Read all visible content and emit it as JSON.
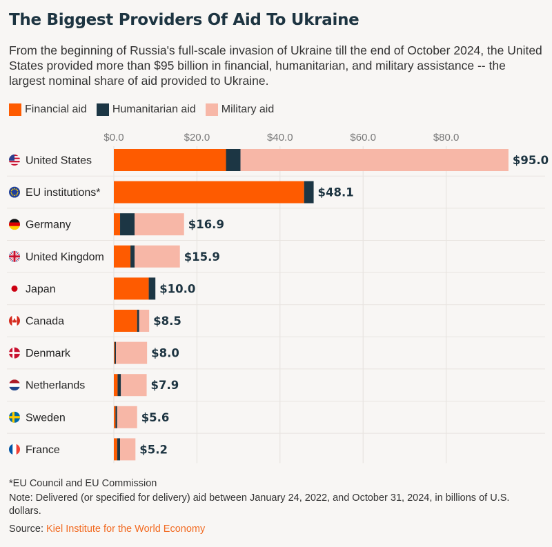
{
  "header": {
    "title": "The Biggest Providers Of Aid To Ukraine",
    "subtitle": "From the beginning of Russia's full-scale invasion of Ukraine till the end of October 2024, the United States provided more than $95 billion in financial, humanitarian, and military assistance -- the largest nominal share of aid provided to Ukraine."
  },
  "legend": [
    {
      "label": "Financial aid",
      "color": "#fe5b00"
    },
    {
      "label": "Humanitarian aid",
      "color": "#1c3644"
    },
    {
      "label": "Military aid",
      "color": "#f7b7a7"
    }
  ],
  "chart_data": {
    "type": "bar",
    "orientation": "horizontal",
    "stacked": true,
    "categories": [
      "United States",
      "EU institutions*",
      "Germany",
      "United Kingdom",
      "Japan",
      "Canada",
      "Denmark",
      "Netherlands",
      "Sweden",
      "France"
    ],
    "flags": [
      "us-flag-icon",
      "eu-flag-icon",
      "germany-flag-icon",
      "uk-flag-icon",
      "japan-flag-icon",
      "canada-flag-icon",
      "denmark-flag-icon",
      "netherlands-flag-icon",
      "sweden-flag-icon",
      "france-flag-icon"
    ],
    "series": [
      {
        "name": "Financial aid",
        "color": "#fe5b00",
        "values": [
          27.0,
          45.8,
          1.5,
          4.0,
          8.4,
          5.6,
          0.2,
          0.9,
          0.4,
          0.8
        ]
      },
      {
        "name": "Humanitarian aid",
        "color": "#1c3644",
        "values": [
          3.5,
          2.3,
          3.5,
          1.0,
          1.6,
          0.5,
          0.3,
          0.8,
          0.4,
          0.7
        ]
      },
      {
        "name": "Military aid",
        "color": "#f7b7a7",
        "values": [
          64.5,
          0.0,
          11.9,
          10.9,
          0.0,
          2.4,
          7.5,
          6.2,
          4.8,
          3.7
        ]
      }
    ],
    "totals": [
      95.0,
      48.1,
      16.9,
      15.9,
      10.0,
      8.5,
      8.0,
      7.9,
      5.6,
      5.2
    ],
    "total_labels": [
      "$95.0",
      "$48.1",
      "$16.9",
      "$15.9",
      "$10.0",
      "$8.5",
      "$8.0",
      "$7.9",
      "$5.6",
      "$5.2"
    ],
    "x_ticks": [
      0,
      20,
      40,
      60,
      80
    ],
    "x_tick_labels": [
      "$0.0",
      "$20.0",
      "$40.0",
      "$60.0",
      "$80.0"
    ],
    "xlim": [
      0,
      95
    ],
    "grid": true,
    "legend_position": "top-left"
  },
  "footnotes": {
    "asterisk": "*EU Council and EU Commission",
    "note": "Note: Delivered (or specified for delivery) aid between January 24, 2022, and October 31, 2024, in billions of U.S. dollars.",
    "source_prefix": "Source: ",
    "source_name": "Kiel Institute for the World Economy"
  }
}
